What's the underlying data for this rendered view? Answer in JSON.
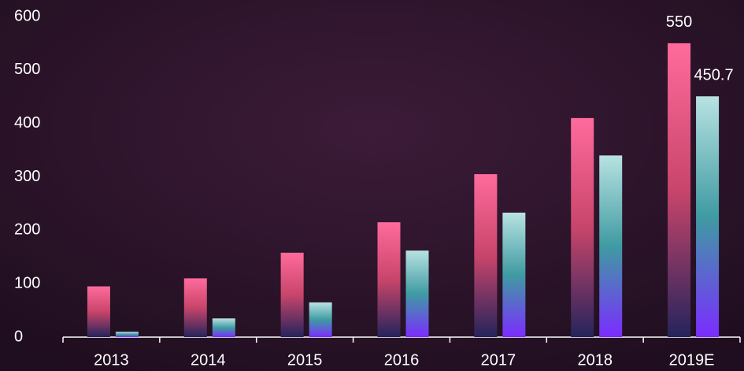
{
  "chart_data": {
    "type": "bar",
    "categories": [
      "2013",
      "2014",
      "2015",
      "2016",
      "2017",
      "2018",
      "2019E"
    ],
    "series": [
      {
        "color": [
          "#ff6b9c",
          "#c8456a",
          "#24245c"
        ],
        "values": [
          95,
          110,
          158,
          215,
          305,
          410,
          550
        ],
        "value_labels": [
          null,
          null,
          null,
          null,
          null,
          null,
          "550"
        ]
      },
      {
        "color": [
          "#b8e2e2",
          "#3f9ba2",
          "#7b2cff"
        ],
        "values": [
          10,
          35,
          65,
          162,
          233,
          340,
          450.7
        ],
        "value_labels": [
          null,
          null,
          null,
          null,
          null,
          null,
          "450.7"
        ]
      }
    ],
    "ylim": [
      0,
      600
    ],
    "yticks": [
      0,
      100,
      200,
      300,
      400,
      500,
      600
    ]
  }
}
